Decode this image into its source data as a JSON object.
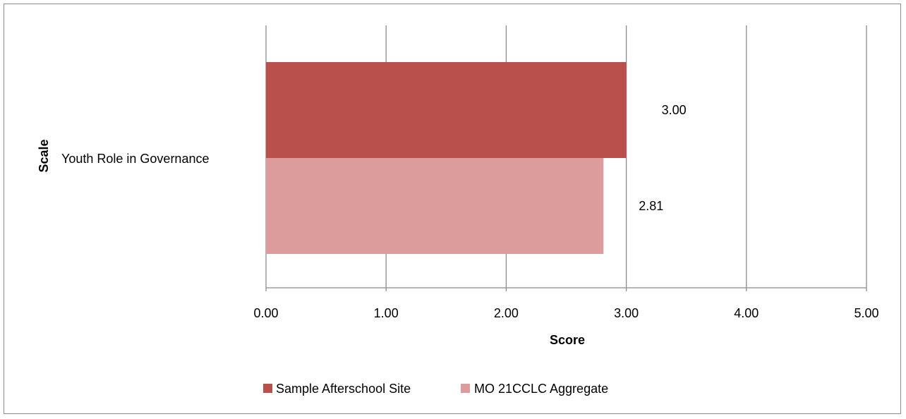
{
  "chart_data": {
    "type": "bar",
    "orientation": "horizontal",
    "categories": [
      "Youth Role in Governance"
    ],
    "series": [
      {
        "name": "Sample Afterschool Site",
        "values": [
          3.0
        ],
        "labels": [
          "3.00"
        ],
        "color": "#b9504c"
      },
      {
        "name": "MO 21CCLC Aggregate",
        "values": [
          2.81
        ],
        "labels": [
          "2.81"
        ],
        "color": "#dc9c9b"
      }
    ],
    "xlabel": "Score",
    "ylabel": "Scale",
    "xlim": [
      0,
      5
    ],
    "xticks": [
      0,
      1,
      2,
      3,
      4,
      5
    ],
    "xtick_labels": [
      "0.00",
      "1.00",
      "2.00",
      "3.00",
      "4.00",
      "5.00"
    ],
    "grid": "vertical",
    "legend_position": "bottom",
    "gridline_color": "#8c8c8c"
  }
}
